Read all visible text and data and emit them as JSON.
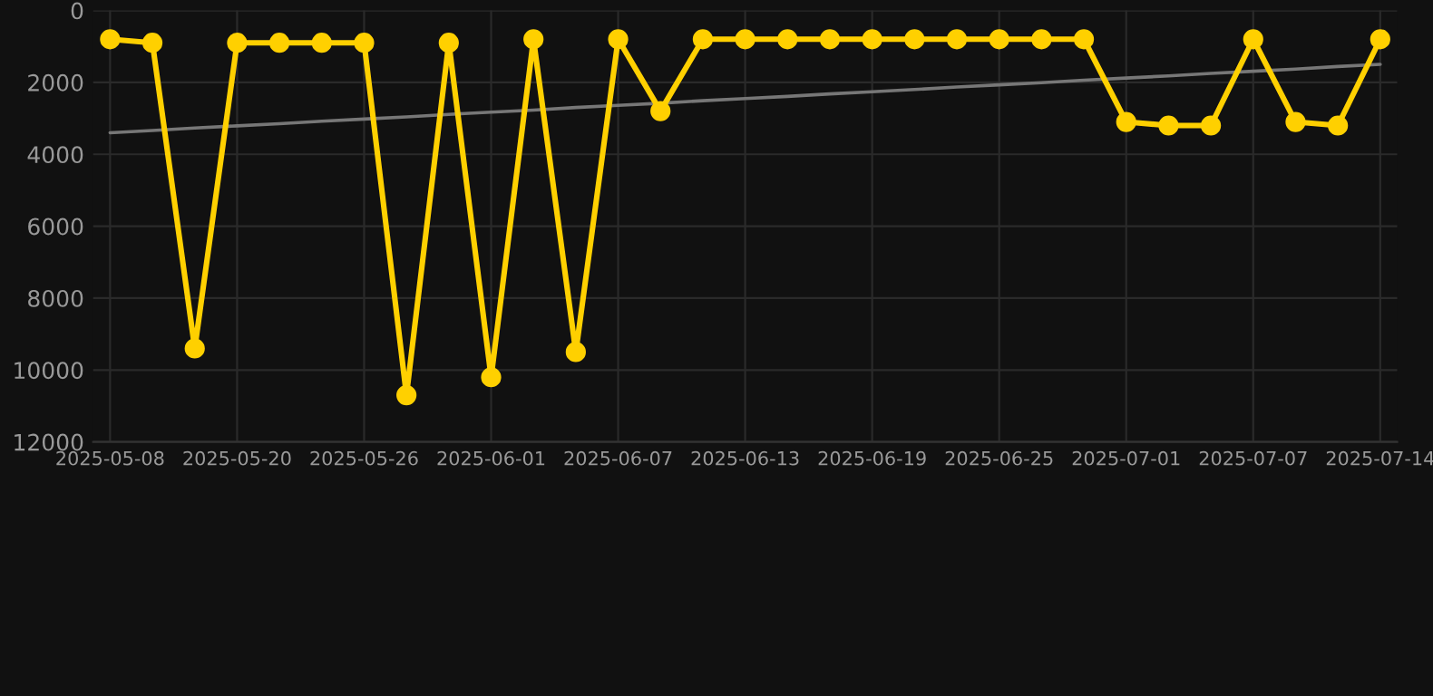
{
  "chart_data": {
    "type": "line",
    "categories": [
      "2025-05-08",
      null,
      null,
      "2025-05-20",
      null,
      null,
      "2025-05-26",
      null,
      null,
      "2025-06-01",
      null,
      null,
      "2025-06-07",
      null,
      null,
      "2025-06-13",
      null,
      null,
      "2025-06-19",
      null,
      null,
      "2025-06-25",
      null,
      null,
      "2025-07-01",
      null,
      null,
      "2025-07-07",
      null,
      null,
      "2025-07-14"
    ],
    "series": [
      {
        "color": "#ffd000",
        "marker": "circle",
        "values": [
          800,
          900,
          9400,
          900,
          900,
          900,
          900,
          10700,
          900,
          10200,
          800,
          9500,
          800,
          2800,
          800,
          800,
          800,
          800,
          800,
          800,
          800,
          800,
          800,
          800,
          3100,
          3200,
          3200,
          800,
          3100,
          3200,
          800
        ]
      },
      {
        "type": "line",
        "color": "#777777",
        "marker": "none",
        "values": [
          3400,
          3340,
          3270,
          3210,
          3150,
          3080,
          3020,
          2960,
          2890,
          2830,
          2770,
          2700,
          2640,
          2580,
          2510,
          2450,
          2390,
          2320,
          2260,
          2200,
          2130,
          2070,
          2010,
          1940,
          1880,
          1820,
          1750,
          1690,
          1630,
          1560,
          1500
        ]
      }
    ],
    "ylim": [
      12000,
      0
    ],
    "yticks": [
      0,
      2000,
      4000,
      6000,
      8000,
      10000,
      12000
    ],
    "grid": true
  }
}
